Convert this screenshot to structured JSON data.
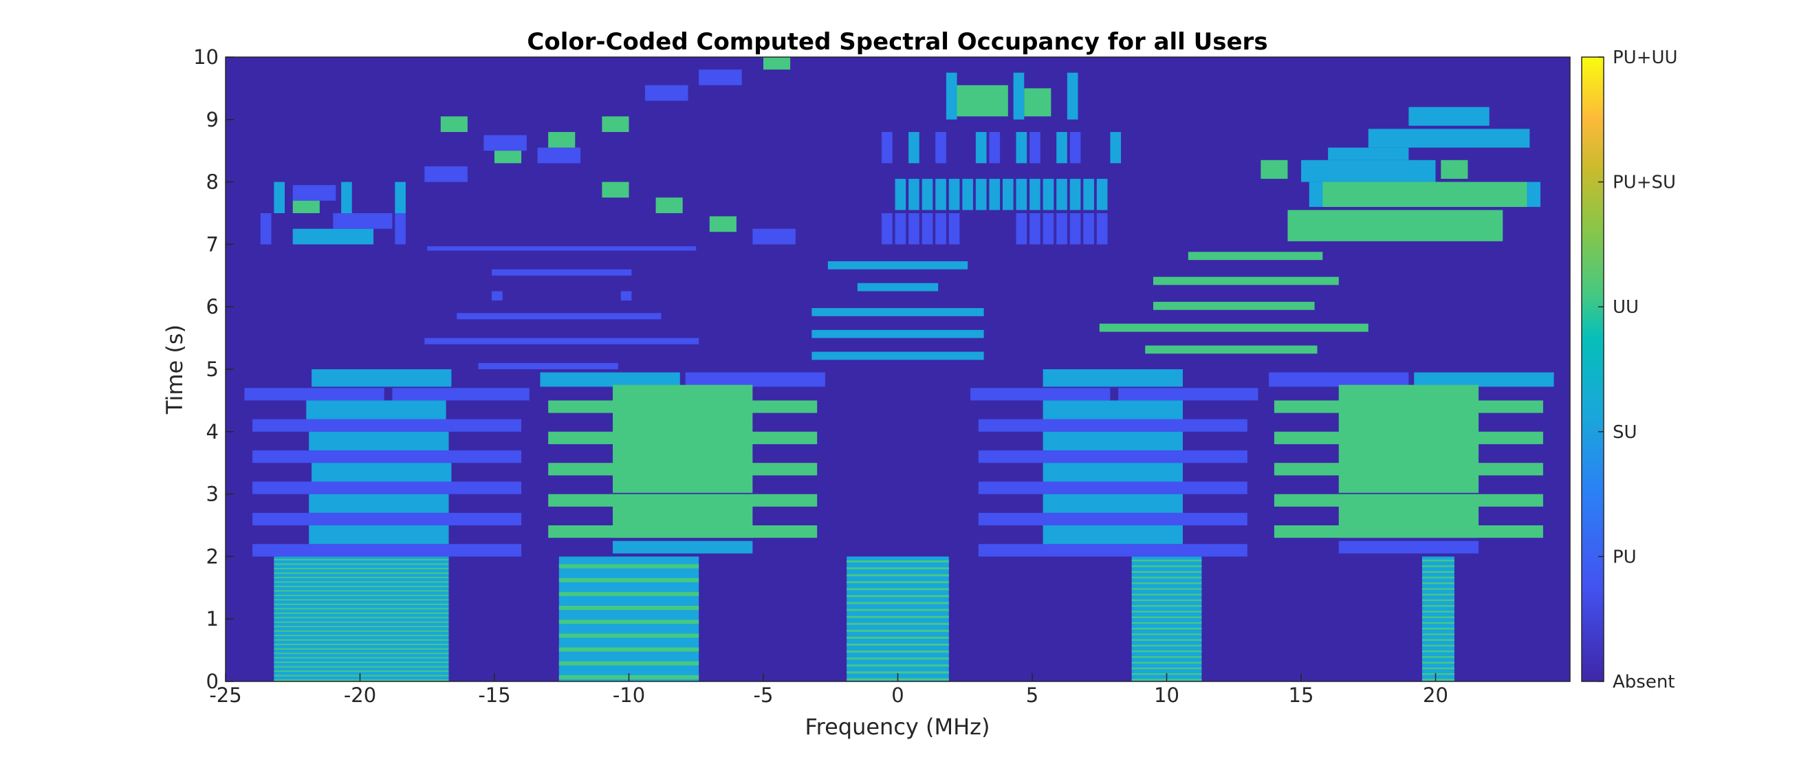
{
  "chart_data": {
    "type": "heatmap",
    "title": "Color-Coded Computed Spectral Occupancy for all Users",
    "xlabel": "Frequency (MHz)",
    "ylabel": "Time (s)",
    "xlim": [
      -25,
      25
    ],
    "ylim": [
      0,
      10
    ],
    "xticks": [
      "-25",
      "-20",
      "-15",
      "-10",
      "-5",
      "0",
      "5",
      "10",
      "15",
      "20"
    ],
    "yticks": [
      "0",
      "1",
      "2",
      "3",
      "4",
      "5",
      "6",
      "7",
      "8",
      "9",
      "10"
    ],
    "grid": false,
    "colorbar": {
      "position": "right",
      "labels": [
        "Absent",
        "PU",
        "SU",
        "UU",
        "PU+SU",
        "PU+UU"
      ]
    },
    "colors": {
      "Absent": "#3d26a8",
      "PU": "#4352f0",
      "SU": "#1aa5dc",
      "UU": "#46c882",
      "background": "#3b28a6"
    },
    "regions": [
      {
        "c": "SU",
        "x0": -23.2,
        "x1": -16.7,
        "y0": 0,
        "y1": 2,
        "striped": "UU",
        "n": 28
      },
      {
        "c": "SU",
        "x0": -12.6,
        "x1": -7.4,
        "y0": 0,
        "y1": 2,
        "striped": "UU",
        "n": 9
      },
      {
        "c": "SU",
        "x0": -1.9,
        "x1": 1.9,
        "y0": 0,
        "y1": 2,
        "striped": "UU",
        "n": 18
      },
      {
        "c": "SU",
        "x0": 8.7,
        "x1": 11.3,
        "y0": 0,
        "y1": 2,
        "striped": "UU",
        "n": 22
      },
      {
        "c": "SU",
        "x0": 19.5,
        "x1": 20.7,
        "y0": 0,
        "y1": 2,
        "striped": "UU",
        "n": 22
      },
      {
        "c": "PU",
        "x0": -24.3,
        "x1": -19.1,
        "y0": 4.5,
        "y1": 4.7
      },
      {
        "c": "PU",
        "x0": -18.8,
        "x1": -13.7,
        "y0": 4.5,
        "y1": 4.7
      },
      {
        "c": "SU",
        "x0": -21.8,
        "x1": -16.6,
        "y0": 4.72,
        "y1": 5.0
      },
      {
        "c": "PU",
        "x0": -24.0,
        "x1": -14.0,
        "y0": 4.0,
        "y1": 4.2
      },
      {
        "c": "PU",
        "x0": -24.0,
        "x1": -14.0,
        "y0": 3.5,
        "y1": 3.7
      },
      {
        "c": "PU",
        "x0": -24.0,
        "x1": -14.0,
        "y0": 3.0,
        "y1": 3.2
      },
      {
        "c": "PU",
        "x0": -24.0,
        "x1": -14.0,
        "y0": 2.5,
        "y1": 2.7
      },
      {
        "c": "PU",
        "x0": -24.0,
        "x1": -14.0,
        "y0": 2.0,
        "y1": 2.2
      },
      {
        "c": "SU",
        "x0": -22.0,
        "x1": -16.8,
        "y0": 4.2,
        "y1": 4.5
      },
      {
        "c": "SU",
        "x0": -21.9,
        "x1": -16.7,
        "y0": 3.7,
        "y1": 4.0
      },
      {
        "c": "SU",
        "x0": -21.8,
        "x1": -16.6,
        "y0": 3.2,
        "y1": 3.5
      },
      {
        "c": "SU",
        "x0": -21.9,
        "x1": -16.7,
        "y0": 2.7,
        "y1": 3.0
      },
      {
        "c": "SU",
        "x0": -21.9,
        "x1": -16.7,
        "y0": 2.2,
        "y1": 2.5
      },
      {
        "c": "SU",
        "x0": -13.3,
        "x1": -8.1,
        "y0": 4.72,
        "y1": 4.95
      },
      {
        "c": "PU",
        "x0": -7.9,
        "x1": -2.7,
        "y0": 4.72,
        "y1": 4.95
      },
      {
        "c": "UU",
        "x0": -13.0,
        "x1": -3.0,
        "y0": 4.3,
        "y1": 4.5
      },
      {
        "c": "UU",
        "x0": -13.0,
        "x1": -3.0,
        "y0": 3.8,
        "y1": 4.0
      },
      {
        "c": "UU",
        "x0": -13.0,
        "x1": -3.0,
        "y0": 3.3,
        "y1": 3.5
      },
      {
        "c": "UU",
        "x0": -13.0,
        "x1": -3.0,
        "y0": 2.8,
        "y1": 3.0
      },
      {
        "c": "UU",
        "x0": -13.0,
        "x1": -3.0,
        "y0": 2.3,
        "y1": 2.5
      },
      {
        "c": "UU",
        "x0": -10.6,
        "x1": -5.4,
        "y0": 3.98,
        "y1": 4.75
      },
      {
        "c": "UU",
        "x0": -10.6,
        "x1": -5.4,
        "y0": 3.02,
        "y1": 3.98
      },
      {
        "c": "UU",
        "x0": -10.6,
        "x1": -5.4,
        "y0": 2.3,
        "y1": 3.0
      },
      {
        "c": "SU",
        "x0": -10.6,
        "x1": -5.4,
        "y0": 2.05,
        "y1": 2.25
      },
      {
        "c": "PU",
        "x0": 2.7,
        "x1": 7.9,
        "y0": 4.5,
        "y1": 4.7
      },
      {
        "c": "PU",
        "x0": 8.2,
        "x1": 13.4,
        "y0": 4.5,
        "y1": 4.7
      },
      {
        "c": "SU",
        "x0": 5.4,
        "x1": 10.6,
        "y0": 4.72,
        "y1": 5.0
      },
      {
        "c": "PU",
        "x0": 3.0,
        "x1": 13.0,
        "y0": 4.0,
        "y1": 4.2
      },
      {
        "c": "PU",
        "x0": 3.0,
        "x1": 13.0,
        "y0": 3.5,
        "y1": 3.7
      },
      {
        "c": "PU",
        "x0": 3.0,
        "x1": 13.0,
        "y0": 3.0,
        "y1": 3.2
      },
      {
        "c": "PU",
        "x0": 3.0,
        "x1": 13.0,
        "y0": 2.5,
        "y1": 2.7
      },
      {
        "c": "PU",
        "x0": 3.0,
        "x1": 13.0,
        "y0": 2.0,
        "y1": 2.2
      },
      {
        "c": "SU",
        "x0": 5.4,
        "x1": 10.6,
        "y0": 4.2,
        "y1": 4.5
      },
      {
        "c": "SU",
        "x0": 5.4,
        "x1": 10.6,
        "y0": 3.7,
        "y1": 4.0
      },
      {
        "c": "SU",
        "x0": 5.4,
        "x1": 10.6,
        "y0": 3.2,
        "y1": 3.5
      },
      {
        "c": "SU",
        "x0": 5.4,
        "x1": 10.6,
        "y0": 2.7,
        "y1": 3.0
      },
      {
        "c": "SU",
        "x0": 5.4,
        "x1": 10.6,
        "y0": 2.2,
        "y1": 2.5
      },
      {
        "c": "PU",
        "x0": 13.8,
        "x1": 19.0,
        "y0": 4.72,
        "y1": 4.95
      },
      {
        "c": "SU",
        "x0": 19.2,
        "x1": 24.4,
        "y0": 4.72,
        "y1": 4.95
      },
      {
        "c": "UU",
        "x0": 14.0,
        "x1": 24.0,
        "y0": 4.3,
        "y1": 4.5
      },
      {
        "c": "UU",
        "x0": 14.0,
        "x1": 24.0,
        "y0": 3.8,
        "y1": 4.0
      },
      {
        "c": "UU",
        "x0": 14.0,
        "x1": 24.0,
        "y0": 3.3,
        "y1": 3.5
      },
      {
        "c": "UU",
        "x0": 14.0,
        "x1": 24.0,
        "y0": 2.8,
        "y1": 3.0
      },
      {
        "c": "UU",
        "x0": 14.0,
        "x1": 24.0,
        "y0": 2.3,
        "y1": 2.5
      },
      {
        "c": "UU",
        "x0": 16.4,
        "x1": 21.6,
        "y0": 3.98,
        "y1": 4.75
      },
      {
        "c": "UU",
        "x0": 16.4,
        "x1": 21.6,
        "y0": 3.02,
        "y1": 3.98
      },
      {
        "c": "UU",
        "x0": 16.4,
        "x1": 21.6,
        "y0": 2.3,
        "y1": 3.0
      },
      {
        "c": "PU",
        "x0": 16.4,
        "x1": 21.6,
        "y0": 2.05,
        "y1": 2.25
      },
      {
        "c": "PU",
        "x0": -15.6,
        "x1": -10.4,
        "y0": 5.0,
        "y1": 5.1
      },
      {
        "c": "PU",
        "x0": -17.6,
        "x1": -7.4,
        "y0": 5.4,
        "y1": 5.5
      },
      {
        "c": "PU",
        "x0": -16.4,
        "x1": -8.8,
        "y0": 5.8,
        "y1": 5.9
      },
      {
        "c": "PU",
        "x0": -15.1,
        "x1": -14.7,
        "y0": 6.1,
        "y1": 6.25
      },
      {
        "c": "PU",
        "x0": -10.3,
        "x1": -9.9,
        "y0": 6.1,
        "y1": 6.25
      },
      {
        "c": "PU",
        "x0": -15.1,
        "x1": -9.9,
        "y0": 6.5,
        "y1": 6.6
      },
      {
        "c": "PU",
        "x0": -17.5,
        "x1": -7.5,
        "y0": 6.9,
        "y1": 6.97
      },
      {
        "c": "SU",
        "x0": -3.2,
        "x1": 3.2,
        "y0": 5.15,
        "y1": 5.28
      },
      {
        "c": "SU",
        "x0": -3.2,
        "x1": 3.2,
        "y0": 5.5,
        "y1": 5.63
      },
      {
        "c": "SU",
        "x0": -3.2,
        "x1": 3.2,
        "y0": 5.85,
        "y1": 5.98
      },
      {
        "c": "SU",
        "x0": -1.5,
        "x1": 1.5,
        "y0": 6.25,
        "y1": 6.38
      },
      {
        "c": "SU",
        "x0": -2.6,
        "x1": 2.6,
        "y0": 6.6,
        "y1": 6.73
      },
      {
        "c": "UU",
        "x0": 9.2,
        "x1": 15.6,
        "y0": 5.25,
        "y1": 5.38
      },
      {
        "c": "UU",
        "x0": 7.5,
        "x1": 17.5,
        "y0": 5.6,
        "y1": 5.73
      },
      {
        "c": "UU",
        "x0": 9.5,
        "x1": 15.5,
        "y0": 5.95,
        "y1": 6.08
      },
      {
        "c": "UU",
        "x0": 9.5,
        "x1": 16.4,
        "y0": 6.35,
        "y1": 6.48
      },
      {
        "c": "UU",
        "x0": 10.8,
        "x1": 15.8,
        "y0": 6.75,
        "y1": 6.88
      },
      {
        "c": "PU",
        "x0": -23.7,
        "x1": -23.3,
        "y0": 7.0,
        "y1": 7.5
      },
      {
        "c": "SU",
        "x0": -23.2,
        "x1": -22.8,
        "y0": 7.5,
        "y1": 8.0
      },
      {
        "c": "PU",
        "x0": -22.5,
        "x1": -20.9,
        "y0": 7.7,
        "y1": 7.95
      },
      {
        "c": "UU",
        "x0": -22.5,
        "x1": -21.5,
        "y0": 7.5,
        "y1": 7.7
      },
      {
        "c": "SU",
        "x0": -22.5,
        "x1": -19.5,
        "y0": 7.0,
        "y1": 7.25
      },
      {
        "c": "SU",
        "x0": -20.7,
        "x1": -20.3,
        "y0": 7.5,
        "y1": 8.0
      },
      {
        "c": "PU",
        "x0": -21.0,
        "x1": -18.8,
        "y0": 7.25,
        "y1": 7.5
      },
      {
        "c": "PU",
        "x0": -18.7,
        "x1": -18.3,
        "y0": 7.0,
        "y1": 7.5
      },
      {
        "c": "SU",
        "x0": -18.7,
        "x1": -18.3,
        "y0": 7.5,
        "y1": 8.0
      },
      {
        "c": "PU",
        "x0": -17.6,
        "x1": -16.0,
        "y0": 8.0,
        "y1": 8.25
      },
      {
        "c": "UU",
        "x0": -17.0,
        "x1": -16.0,
        "y0": 8.8,
        "y1": 9.05
      },
      {
        "c": "PU",
        "x0": -15.4,
        "x1": -13.8,
        "y0": 8.5,
        "y1": 8.75
      },
      {
        "c": "UU",
        "x0": -15.0,
        "x1": -14.0,
        "y0": 8.3,
        "y1": 8.5
      },
      {
        "c": "PU",
        "x0": -13.4,
        "x1": -11.8,
        "y0": 8.3,
        "y1": 8.55
      },
      {
        "c": "UU",
        "x0": -13.0,
        "x1": -12.0,
        "y0": 8.55,
        "y1": 8.8
      },
      {
        "c": "UU",
        "x0": -11.0,
        "x1": -10.0,
        "y0": 7.75,
        "y1": 8.0
      },
      {
        "c": "UU",
        "x0": -11.0,
        "x1": -10.0,
        "y0": 8.8,
        "y1": 9.05
      },
      {
        "c": "UU",
        "x0": -9.0,
        "x1": -8.0,
        "y0": 7.5,
        "y1": 7.75
      },
      {
        "c": "PU",
        "x0": -9.4,
        "x1": -7.8,
        "y0": 9.3,
        "y1": 9.55
      },
      {
        "c": "UU",
        "x0": -7.0,
        "x1": -6.0,
        "y0": 7.2,
        "y1": 7.45
      },
      {
        "c": "PU",
        "x0": -7.4,
        "x1": -5.8,
        "y0": 9.55,
        "y1": 9.8
      },
      {
        "c": "PU",
        "x0": -5.4,
        "x1": -3.8,
        "y0": 7.0,
        "y1": 7.25
      },
      {
        "c": "UU",
        "x0": -5.0,
        "x1": -4.0,
        "y0": 9.8,
        "y1": 10.0
      },
      {
        "c": "PU",
        "x0": -0.6,
        "x1": -0.2,
        "y0": 7.0,
        "y1": 7.5
      },
      {
        "c": "PU",
        "x0": -0.1,
        "x1": 0.3,
        "y0": 7.0,
        "y1": 7.5
      },
      {
        "c": "PU",
        "x0": 0.4,
        "x1": 0.8,
        "y0": 7.0,
        "y1": 7.5
      },
      {
        "c": "PU",
        "x0": 0.9,
        "x1": 1.3,
        "y0": 7.0,
        "y1": 7.5
      },
      {
        "c": "PU",
        "x0": 1.4,
        "x1": 1.8,
        "y0": 7.0,
        "y1": 7.5
      },
      {
        "c": "PU",
        "x0": 1.9,
        "x1": 2.3,
        "y0": 7.0,
        "y1": 7.5
      },
      {
        "c": "PU",
        "x0": 4.4,
        "x1": 4.8,
        "y0": 7.0,
        "y1": 7.5
      },
      {
        "c": "PU",
        "x0": 4.9,
        "x1": 5.3,
        "y0": 7.0,
        "y1": 7.5
      },
      {
        "c": "PU",
        "x0": 5.4,
        "x1": 5.8,
        "y0": 7.0,
        "y1": 7.5
      },
      {
        "c": "PU",
        "x0": 5.9,
        "x1": 6.3,
        "y0": 7.0,
        "y1": 7.5
      },
      {
        "c": "PU",
        "x0": 6.4,
        "x1": 6.8,
        "y0": 7.0,
        "y1": 7.5
      },
      {
        "c": "PU",
        "x0": 6.9,
        "x1": 7.3,
        "y0": 7.0,
        "y1": 7.5
      },
      {
        "c": "PU",
        "x0": 7.4,
        "x1": 7.8,
        "y0": 7.0,
        "y1": 7.5
      },
      {
        "c": "SU",
        "x0": -0.1,
        "x1": 0.3,
        "y0": 7.55,
        "y1": 8.05
      },
      {
        "c": "SU",
        "x0": 0.4,
        "x1": 0.8,
        "y0": 7.55,
        "y1": 8.05
      },
      {
        "c": "SU",
        "x0": 0.9,
        "x1": 1.3,
        "y0": 7.55,
        "y1": 8.05
      },
      {
        "c": "SU",
        "x0": 1.4,
        "x1": 1.8,
        "y0": 7.55,
        "y1": 8.05
      },
      {
        "c": "SU",
        "x0": 1.9,
        "x1": 2.3,
        "y0": 7.55,
        "y1": 8.05
      },
      {
        "c": "SU",
        "x0": 2.4,
        "x1": 2.8,
        "y0": 7.55,
        "y1": 8.05
      },
      {
        "c": "SU",
        "x0": 2.9,
        "x1": 3.3,
        "y0": 7.55,
        "y1": 8.05
      },
      {
        "c": "SU",
        "x0": 3.4,
        "x1": 3.8,
        "y0": 7.55,
        "y1": 8.05
      },
      {
        "c": "SU",
        "x0": 3.9,
        "x1": 4.3,
        "y0": 7.55,
        "y1": 8.05
      },
      {
        "c": "SU",
        "x0": 4.4,
        "x1": 4.8,
        "y0": 7.55,
        "y1": 8.05
      },
      {
        "c": "SU",
        "x0": 4.9,
        "x1": 5.3,
        "y0": 7.55,
        "y1": 8.05
      },
      {
        "c": "SU",
        "x0": 5.4,
        "x1": 5.8,
        "y0": 7.55,
        "y1": 8.05
      },
      {
        "c": "SU",
        "x0": 5.9,
        "x1": 6.3,
        "y0": 7.55,
        "y1": 8.05
      },
      {
        "c": "SU",
        "x0": 6.4,
        "x1": 6.8,
        "y0": 7.55,
        "y1": 8.05
      },
      {
        "c": "SU",
        "x0": 6.9,
        "x1": 7.3,
        "y0": 7.55,
        "y1": 8.05
      },
      {
        "c": "SU",
        "x0": 7.4,
        "x1": 7.8,
        "y0": 7.55,
        "y1": 8.05
      },
      {
        "c": "PU",
        "x0": -0.6,
        "x1": -0.2,
        "y0": 8.3,
        "y1": 8.8
      },
      {
        "c": "SU",
        "x0": 0.4,
        "x1": 0.8,
        "y0": 8.3,
        "y1": 8.8
      },
      {
        "c": "PU",
        "x0": 1.4,
        "x1": 1.8,
        "y0": 8.3,
        "y1": 8.8
      },
      {
        "c": "SU",
        "x0": 2.9,
        "x1": 3.3,
        "y0": 8.3,
        "y1": 8.8
      },
      {
        "c": "PU",
        "x0": 3.4,
        "x1": 3.8,
        "y0": 8.3,
        "y1": 8.8
      },
      {
        "c": "SU",
        "x0": 4.4,
        "x1": 4.8,
        "y0": 8.3,
        "y1": 8.8
      },
      {
        "c": "PU",
        "x0": 4.9,
        "x1": 5.3,
        "y0": 8.3,
        "y1": 8.8
      },
      {
        "c": "SU",
        "x0": 5.9,
        "x1": 6.3,
        "y0": 8.3,
        "y1": 8.8
      },
      {
        "c": "PU",
        "x0": 6.4,
        "x1": 6.8,
        "y0": 8.3,
        "y1": 8.8
      },
      {
        "c": "SU",
        "x0": 7.9,
        "x1": 8.3,
        "y0": 8.3,
        "y1": 8.8
      },
      {
        "c": "SU",
        "x0": 1.8,
        "x1": 2.2,
        "y0": 9.0,
        "y1": 9.75
      },
      {
        "c": "UU",
        "x0": 2.2,
        "x1": 4.1,
        "y0": 9.05,
        "y1": 9.55
      },
      {
        "c": "SU",
        "x0": 4.3,
        "x1": 4.7,
        "y0": 9.0,
        "y1": 9.75
      },
      {
        "c": "UU",
        "x0": 4.7,
        "x1": 5.7,
        "y0": 9.05,
        "y1": 9.5
      },
      {
        "c": "SU",
        "x0": 6.3,
        "x1": 6.7,
        "y0": 9.0,
        "y1": 9.75
      },
      {
        "c": "SU",
        "x0": 19.0,
        "x1": 22.0,
        "y0": 8.9,
        "y1": 9.2
      },
      {
        "c": "SU",
        "x0": 17.5,
        "x1": 23.5,
        "y0": 8.55,
        "y1": 8.85
      },
      {
        "c": "SU",
        "x0": 16.0,
        "x1": 19.0,
        "y0": 8.35,
        "y1": 8.55
      },
      {
        "c": "SU",
        "x0": 15.0,
        "x1": 20.0,
        "y0": 8.0,
        "y1": 8.35
      },
      {
        "c": "UU",
        "x0": 13.5,
        "x1": 14.5,
        "y0": 8.05,
        "y1": 8.35
      },
      {
        "c": "UU",
        "x0": 20.2,
        "x1": 21.2,
        "y0": 8.05,
        "y1": 8.35
      },
      {
        "c": "SU",
        "x0": 15.3,
        "x1": 23.9,
        "y0": 7.6,
        "y1": 8.0
      },
      {
        "c": "UU",
        "x0": 15.8,
        "x1": 23.4,
        "y0": 7.6,
        "y1": 8.0
      },
      {
        "c": "UU",
        "x0": 14.5,
        "x1": 22.5,
        "y0": 7.05,
        "y1": 7.55
      }
    ]
  }
}
